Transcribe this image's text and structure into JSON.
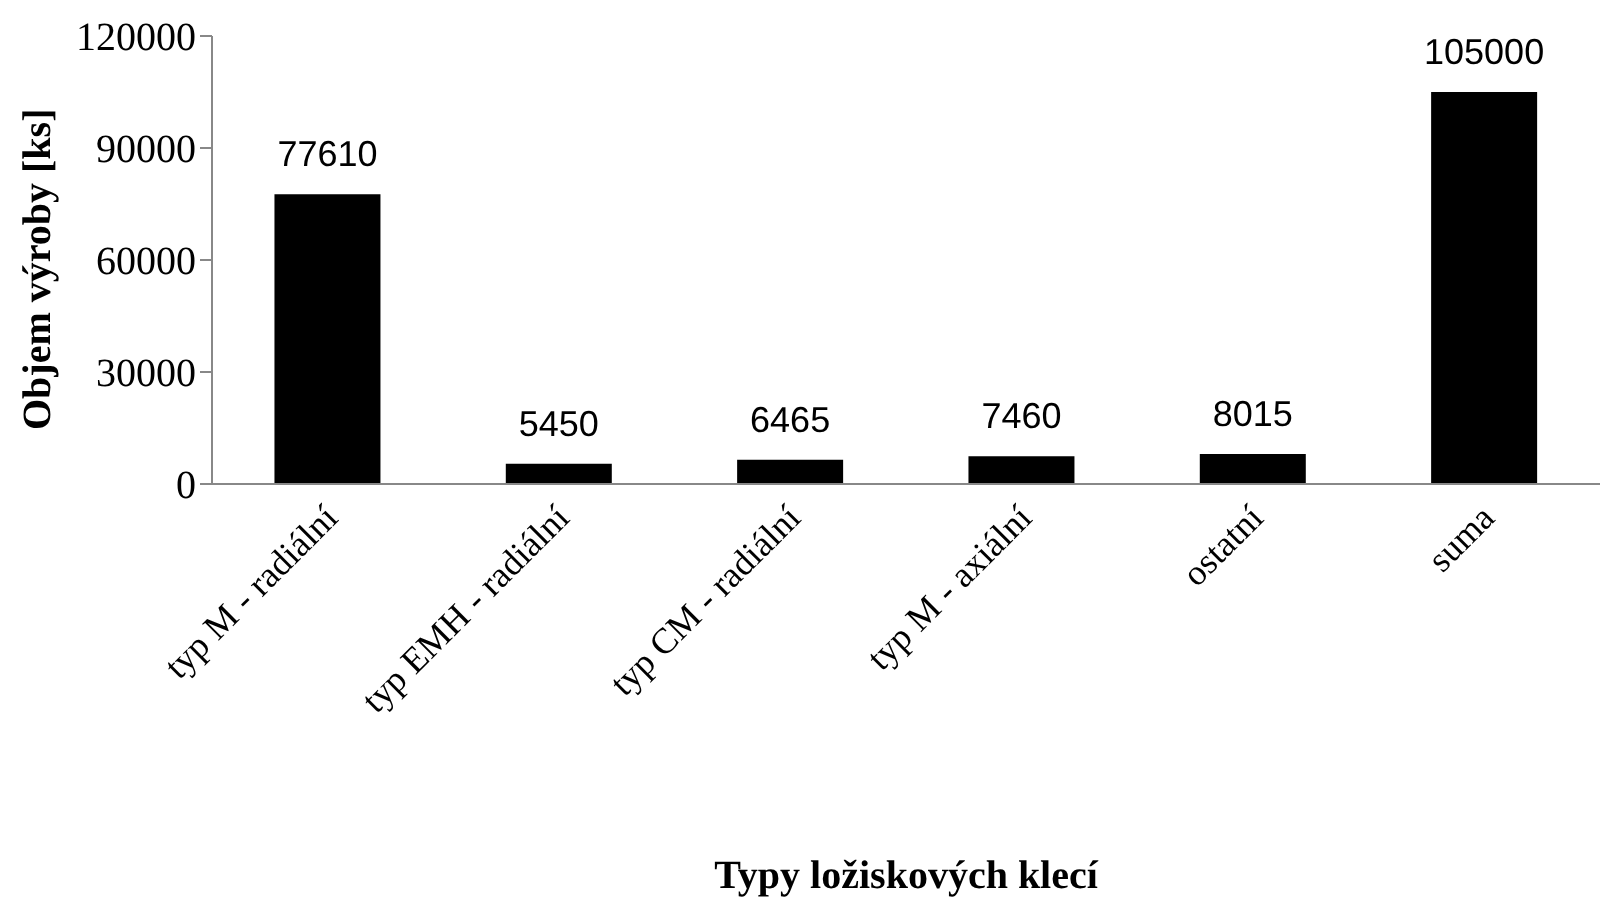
{
  "chart_data": {
    "type": "bar",
    "xlabel": "Typy ložiskových klecí",
    "ylabel": "Objem výroby [ks]",
    "categories": [
      "typ M - radiální",
      "typ EMH - radiální",
      "typ CM - radiální",
      "typ M - axiální",
      "ostatní",
      "suma"
    ],
    "values": [
      77610,
      5450,
      6465,
      7460,
      8015,
      105000
    ],
    "color": "#000000",
    "ylim": [
      0,
      120000
    ],
    "yticks": [
      0,
      30000,
      60000,
      90000,
      120000
    ],
    "data_labels": true
  }
}
